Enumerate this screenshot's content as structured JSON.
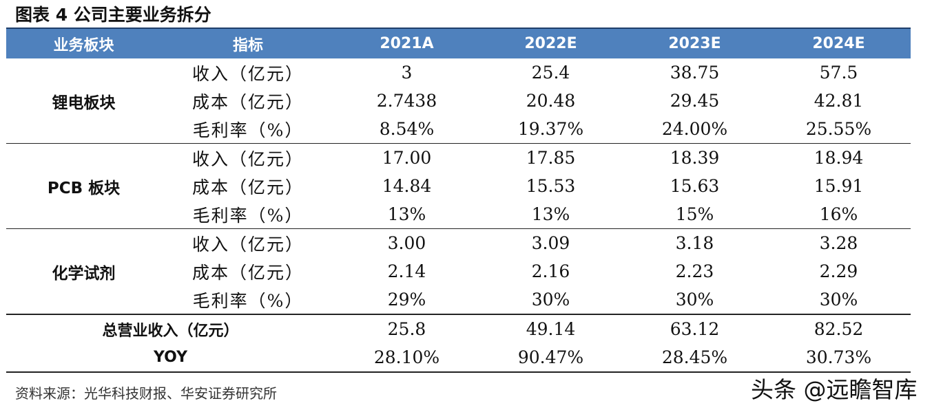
{
  "caption": "图表 4 公司主要业务拆分",
  "header": {
    "segment": "业务板块",
    "metric": "指标",
    "years": [
      "2021A",
      "2022E",
      "2023E",
      "2024E"
    ]
  },
  "groups": [
    {
      "name": "锂电板块",
      "rows": [
        {
          "metric": "收入（亿元）",
          "values": [
            "3",
            "25.4",
            "38.75",
            "57.5"
          ]
        },
        {
          "metric": "成本（亿元）",
          "values": [
            "2.7438",
            "20.48",
            "29.45",
            "42.81"
          ]
        },
        {
          "metric": "毛利率（%）",
          "values": [
            "8.54%",
            "19.37%",
            "24.00%",
            "25.55%"
          ]
        }
      ]
    },
    {
      "name": "PCB 板块",
      "rows": [
        {
          "metric": "收入（亿元）",
          "values": [
            "17.00",
            "17.85",
            "18.39",
            "18.94"
          ]
        },
        {
          "metric": "成本（亿元）",
          "values": [
            "14.84",
            "15.53",
            "15.63",
            "15.91"
          ]
        },
        {
          "metric": "毛利率（%）",
          "values": [
            "13%",
            "13%",
            "15%",
            "16%"
          ]
        }
      ]
    },
    {
      "name": "化学试剂",
      "rows": [
        {
          "metric": "收入（亿元）",
          "values": [
            "3.00",
            "3.09",
            "3.18",
            "3.28"
          ]
        },
        {
          "metric": "成本（亿元）",
          "values": [
            "2.14",
            "2.16",
            "2.23",
            "2.29"
          ]
        },
        {
          "metric": "毛利率（%）",
          "values": [
            "29%",
            "30%",
            "30%",
            "30%"
          ]
        }
      ]
    }
  ],
  "totals": [
    {
      "label": "总营业收入（亿元）",
      "values": [
        "25.8",
        "49.14",
        "63.12",
        "82.52"
      ]
    },
    {
      "label": "YOY",
      "values": [
        "28.10%",
        "90.47%",
        "28.45%",
        "30.73%"
      ]
    }
  ],
  "source": "资料来源：光华科技财报、华安证券研究所",
  "watermark": "头条 @远瞻智库",
  "colors": {
    "header_bg": "#4f81bd",
    "header_text": "#ffffff"
  }
}
